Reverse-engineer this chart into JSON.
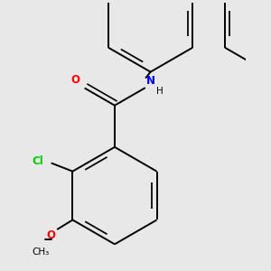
{
  "bg_color": "#e8e8e8",
  "bond_color": "#000000",
  "bond_width": 1.4,
  "atom_colors": {
    "O": "#ff0000",
    "N": "#0000ff",
    "Cl": "#00cc00",
    "C": "#000000",
    "H": "#000000"
  },
  "font_size": 8.5
}
